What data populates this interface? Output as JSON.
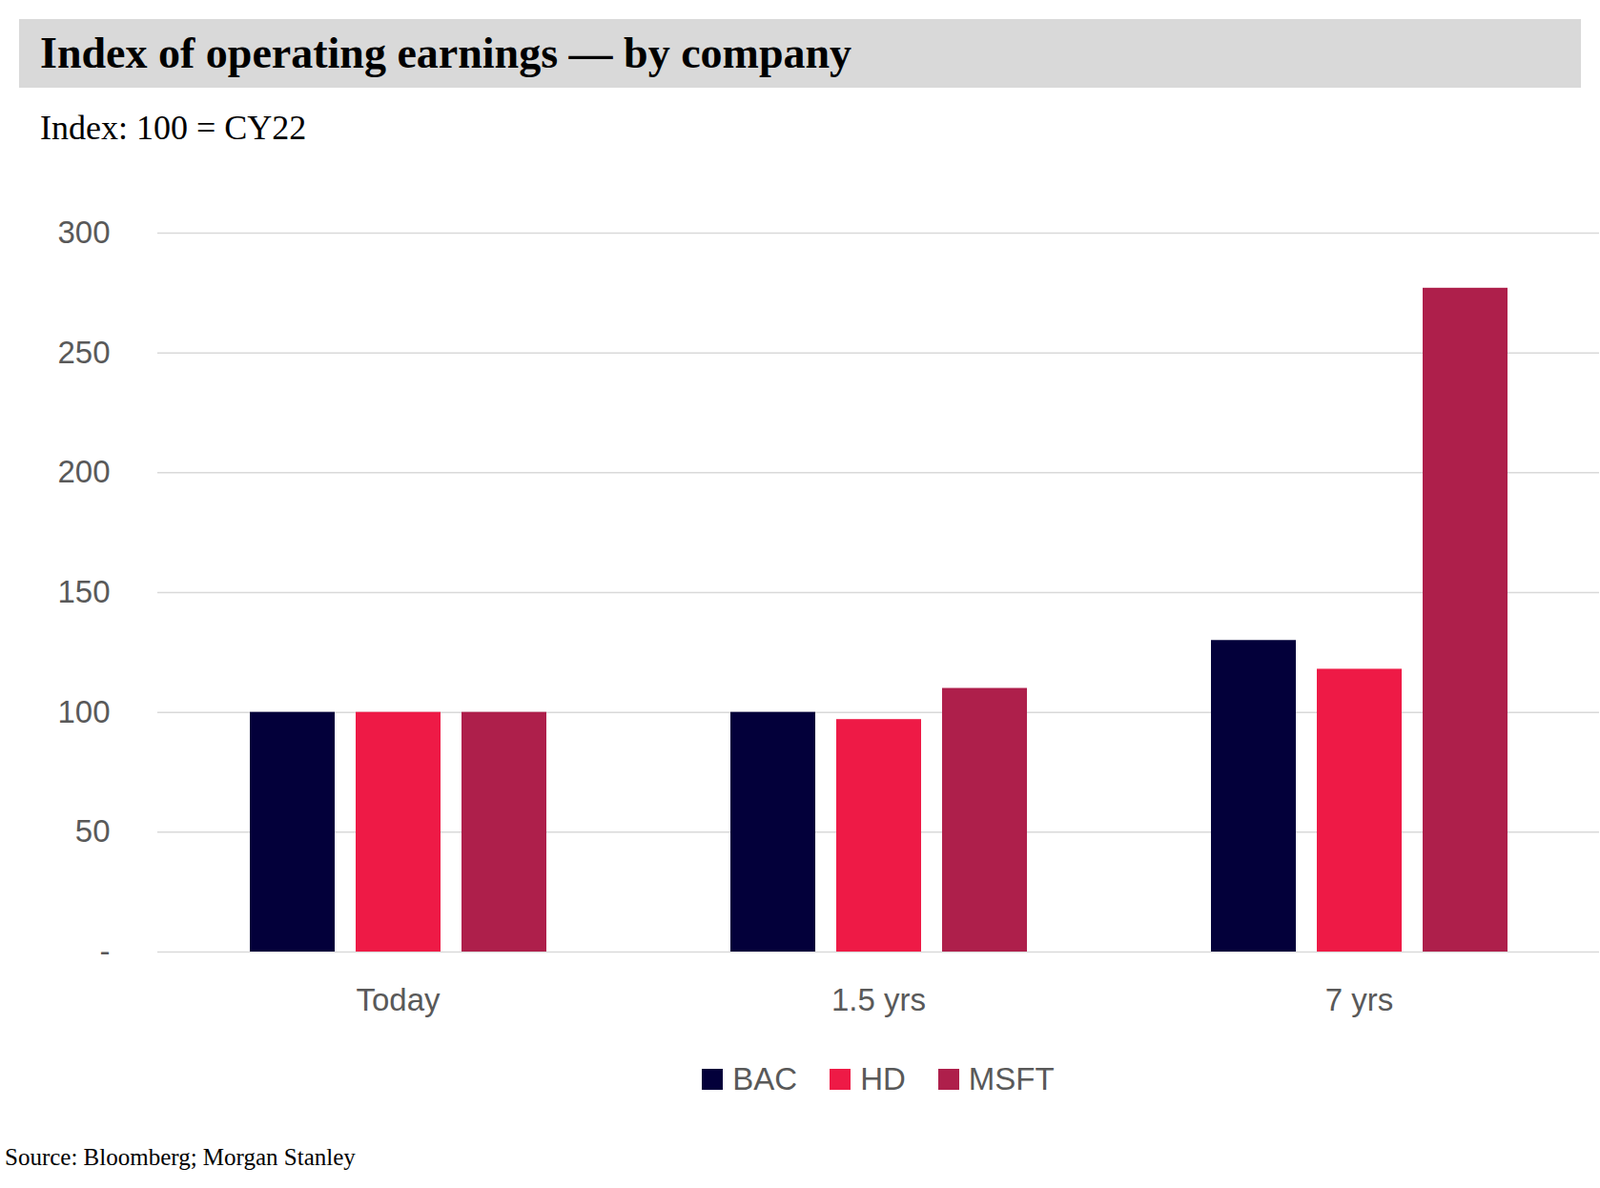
{
  "chart_data": {
    "type": "bar",
    "title": "Index of operating earnings — by company",
    "subtitle": "Index: 100 = CY22",
    "source": "Source: Bloomberg; Morgan Stanley",
    "categories": [
      "Today",
      "1.5 yrs",
      "7 yrs"
    ],
    "series": [
      {
        "name": "BAC",
        "color": "#03003a",
        "values": [
          100,
          100,
          130
        ]
      },
      {
        "name": "HD",
        "color": "#ee1a46",
        "values": [
          100,
          97,
          118
        ]
      },
      {
        "name": "MSFT",
        "color": "#ae1f4b",
        "values": [
          100,
          110,
          277
        ]
      }
    ],
    "ylim": [
      0,
      300
    ],
    "yticks": [
      {
        "value": 0,
        "label": "-"
      },
      50,
      100,
      150,
      200,
      250,
      300
    ],
    "grid": true,
    "legend": "bottom"
  }
}
